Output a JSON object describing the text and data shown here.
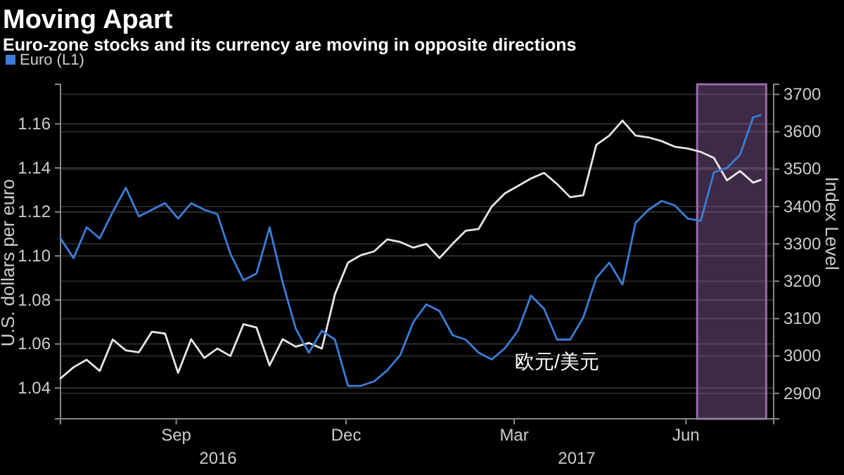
{
  "chart_data": {
    "type": "line",
    "title": "Moving Apart",
    "subtitle": "Euro-zone stocks and its currency are moving in opposite directions",
    "ylabel": "U.S. dollars per euro",
    "y2label": "Index Level",
    "x": [
      "2016-07-15",
      "2016-07-22",
      "2016-07-29",
      "2016-08-05",
      "2016-08-12",
      "2016-08-19",
      "2016-08-26",
      "2016-09-02",
      "2016-09-09",
      "2016-09-16",
      "2016-09-23",
      "2016-09-30",
      "2016-10-07",
      "2016-10-14",
      "2016-10-21",
      "2016-10-28",
      "2016-11-04",
      "2016-11-11",
      "2016-11-18",
      "2016-11-25",
      "2016-12-02",
      "2016-12-09",
      "2016-12-16",
      "2016-12-23",
      "2016-12-30",
      "2017-01-06",
      "2017-01-13",
      "2017-01-20",
      "2017-01-27",
      "2017-02-03",
      "2017-02-10",
      "2017-02-17",
      "2017-02-24",
      "2017-03-03",
      "2017-03-10",
      "2017-03-17",
      "2017-03-24",
      "2017-03-31",
      "2017-04-07",
      "2017-04-14",
      "2017-04-21",
      "2017-04-28",
      "2017-05-05",
      "2017-05-12",
      "2017-05-19",
      "2017-05-26",
      "2017-06-02",
      "2017-06-09",
      "2017-06-16",
      "2017-06-23",
      "2017-06-30",
      "2017-07-07",
      "2017-07-14",
      "2017-07-21",
      "2017-07-25"
    ],
    "series": [
      {
        "color": "#e6e6e6",
        "axis": "y2",
        "values": [
          2940,
          2970,
          2990,
          2960,
          3044,
          3015,
          3010,
          3065,
          3060,
          2955,
          3045,
          2995,
          3020,
          3000,
          3085,
          3076,
          2975,
          3045,
          3025,
          3035,
          3020,
          3165,
          3250,
          3270,
          3280,
          3312,
          3305,
          3290,
          3300,
          3262,
          3300,
          3335,
          3340,
          3400,
          3435,
          3455,
          3475,
          3490,
          3460,
          3425,
          3430,
          3565,
          3590,
          3630,
          3590,
          3585,
          3575,
          3560,
          3555,
          3546,
          3530,
          3470,
          3495,
          3464,
          3471
        ]
      },
      {
        "name": "Euro (L1)",
        "color": "#3b7dd8",
        "values": [
          1.108,
          1.099,
          1.113,
          1.108,
          1.12,
          1.131,
          1.118,
          1.121,
          1.124,
          1.117,
          1.124,
          1.121,
          1.119,
          1.101,
          1.089,
          1.092,
          1.113,
          1.088,
          1.067,
          1.056,
          1.066,
          1.062,
          1.041,
          1.041,
          1.043,
          1.048,
          1.055,
          1.07,
          1.078,
          1.075,
          1.064,
          1.062,
          1.056,
          1.053,
          1.058,
          1.066,
          1.082,
          1.076,
          1.062,
          1.062,
          1.072,
          1.09,
          1.097,
          1.087,
          1.115,
          1.121,
          1.125,
          1.123,
          1.117,
          1.116,
          1.138,
          1.14,
          1.146,
          1.163,
          1.164
        ]
      }
    ],
    "xlim": [
      "2016-07-15",
      "2017-08-01"
    ],
    "xticks": [
      {
        "value": "2016-09-15",
        "label": "Sep"
      },
      {
        "value": "2016-12-15",
        "label": "Dec"
      },
      {
        "value": "2017-03-15",
        "label": "Mar"
      },
      {
        "value": "2017-06-15",
        "label": "Jun"
      }
    ],
    "ylim": [
      1.026,
      1.178
    ],
    "yticks": [
      {
        "value": 1.04,
        "label": "1.04"
      },
      {
        "value": 1.06,
        "label": "1.06"
      },
      {
        "value": 1.08,
        "label": "1.08"
      },
      {
        "value": 1.1,
        "label": "1.10"
      },
      {
        "value": 1.12,
        "label": "1.12"
      },
      {
        "value": 1.14,
        "label": "1.14"
      },
      {
        "value": 1.16,
        "label": "1.16"
      }
    ],
    "y2lim": [
      2832,
      3727
    ],
    "y2ticks": [
      2900,
      3000,
      3100,
      3200,
      3300,
      3400,
      3500,
      3600,
      3700
    ],
    "bands": [
      {
        "axis": "x",
        "from": "2017-06-21",
        "to": "2017-07-28",
        "color": "#9a6aae"
      }
    ],
    "annotations": [
      "欧元/美元",
      "2016",
      "2017"
    ],
    "grid": "y",
    "legend": "top left"
  }
}
